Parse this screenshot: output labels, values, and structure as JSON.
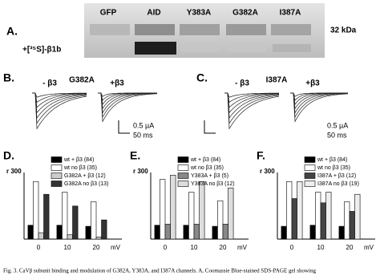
{
  "panel_a": {
    "label": "A.",
    "lanes": [
      "GFP",
      "AID",
      "Y383A",
      "G382A",
      "I387A"
    ],
    "size": "32 kDa",
    "row_label": "+[³⁵S]-β1b"
  },
  "panel_b": {
    "label": "B.",
    "minus": "- β3",
    "mutant": "G382A",
    "plus": "+β3",
    "scale_current": "0.5 µA",
    "scale_time": "50 ms"
  },
  "panel_c": {
    "label": "C.",
    "minus": "- β3",
    "mutant": "I387A",
    "plus": "+β3",
    "scale_current": "0.5 µA",
    "scale_time": "50 ms"
  },
  "chart_data": [
    {
      "type": "bar",
      "panel_label": "D.",
      "ylabel": "r 300",
      "xlabel": "mV",
      "categories": [
        "0",
        "10",
        "20"
      ],
      "ylim": [
        0,
        0.35
      ],
      "series": [
        {
          "name": "wt + β3 (84)",
          "color": "#000000",
          "values": [
            0.065,
            0.065,
            0.06
          ]
        },
        {
          "name": "wt no β3 (35)",
          "color": "#ffffff",
          "values": [
            0.27,
            0.22,
            0.175
          ]
        },
        {
          "name": "G382A + β3 (12)",
          "color": "#cccccc",
          "values": [
            0.03,
            0.02,
            0.01
          ]
        },
        {
          "name": "G382A no β3 (13)",
          "color": "#333333",
          "values": [
            0.21,
            0.155,
            0.09
          ]
        }
      ]
    },
    {
      "type": "bar",
      "panel_label": "E.",
      "ylabel": "r 300",
      "xlabel": "mV",
      "categories": [
        "0",
        "10",
        "20"
      ],
      "ylim": [
        0,
        0.35
      ],
      "series": [
        {
          "name": "wt + β3 (84)",
          "color": "#000000",
          "values": [
            0.065,
            0.065,
            0.06
          ]
        },
        {
          "name": "wt no β3 (35)",
          "color": "#ffffff",
          "values": [
            0.28,
            0.22,
            0.18
          ]
        },
        {
          "name": "Y383A + β3 (5)",
          "color": "#888888",
          "values": [
            0.07,
            0.07,
            0.07
          ]
        },
        {
          "name": "Y383A no β3 (12)",
          "color": "#dddddd",
          "values": [
            0.3,
            0.27,
            0.24
          ]
        }
      ]
    },
    {
      "type": "bar",
      "panel_label": "F.",
      "ylabel": "r 300",
      "xlabel": "mV",
      "categories": [
        "0",
        "10",
        "20"
      ],
      "ylim": [
        0,
        0.35
      ],
      "series": [
        {
          "name": "wt + β3 (84)",
          "color": "#000000",
          "values": [
            0.06,
            0.065,
            0.06
          ]
        },
        {
          "name": "wt no β3 (35)",
          "color": "#ffffff",
          "values": [
            0.27,
            0.22,
            0.175
          ]
        },
        {
          "name": "I387A + β3 (12)",
          "color": "#444444",
          "values": [
            0.19,
            0.17,
            0.13
          ]
        },
        {
          "name": "I387A no β3 (19)",
          "color": "#eeeeee",
          "values": [
            0.27,
            0.22,
            0.21
          ]
        }
      ]
    }
  ],
  "caption": "Fig. 3. CaVβ subunit binding and modulation of G382A, Y383A, and I387A channels. A, Coomassie Blue-stained SDS-PAGE gel showing"
}
